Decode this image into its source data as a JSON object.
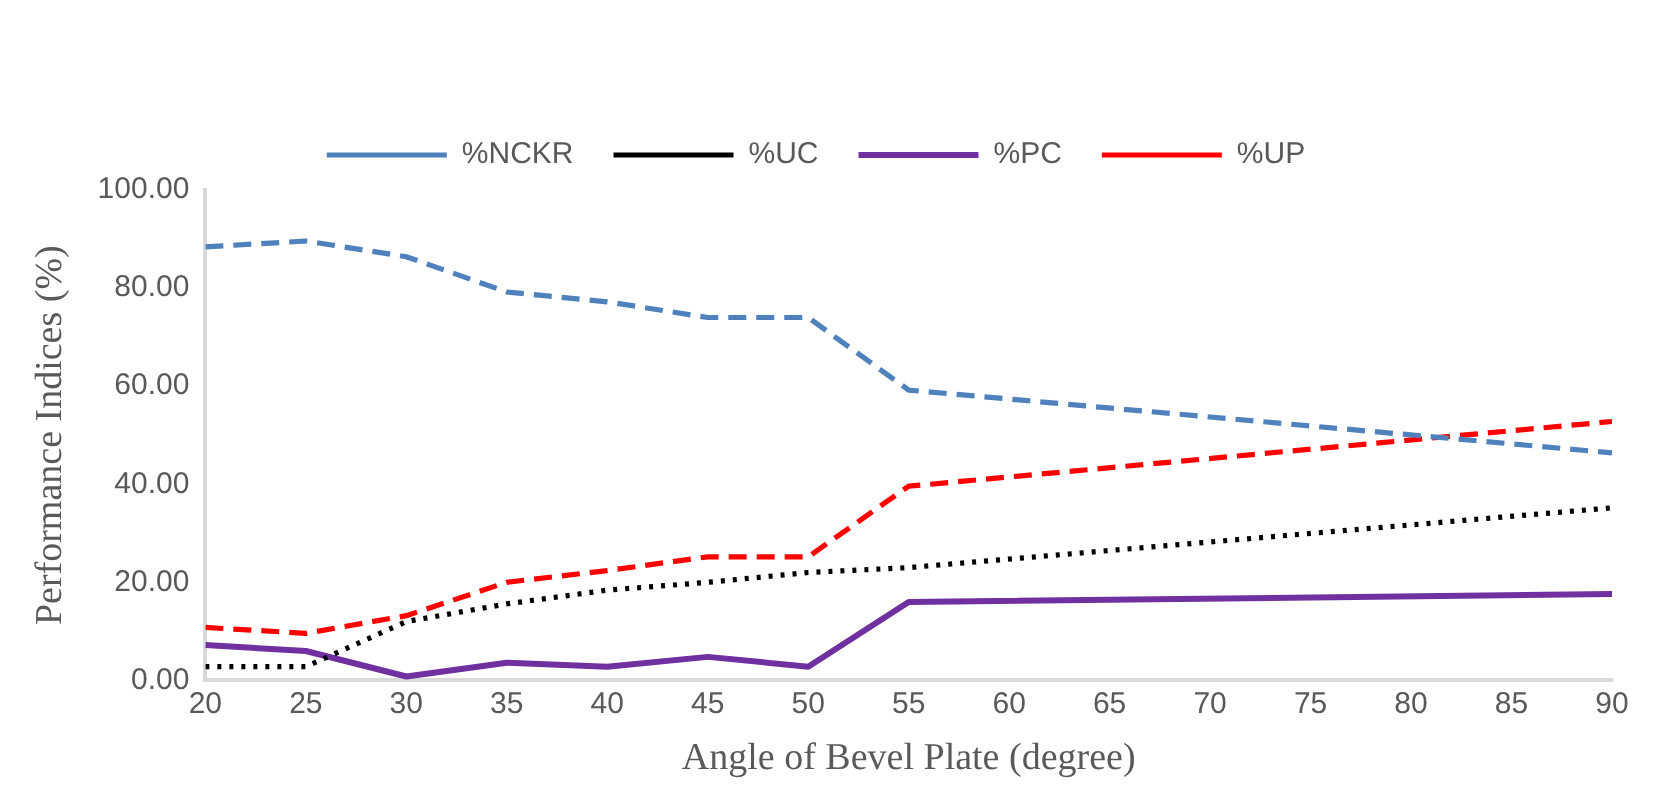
{
  "chart_data": {
    "type": "line",
    "xlabel": "Angle of Bevel Plate (degree)",
    "ylabel": "Performance Indices (%)",
    "xlim": [
      20,
      90
    ],
    "xticks": [
      20,
      25,
      30,
      35,
      40,
      45,
      50,
      55,
      60,
      65,
      70,
      75,
      80,
      85,
      90
    ],
    "ylim": [
      0,
      100
    ],
    "yticks": [
      {
        "value": 0,
        "label": "0.00"
      },
      {
        "value": 20,
        "label": "20.00"
      },
      {
        "value": 40,
        "label": "40.00"
      },
      {
        "value": 60,
        "label": "60.00"
      },
      {
        "value": 80,
        "label": "80.00"
      },
      {
        "value": 100,
        "label": "100.00"
      }
    ],
    "grid": false,
    "legend": "top",
    "marker": "none",
    "series": [
      {
        "name": "%NCKR",
        "color": "#4f81bd",
        "line_style": "dashed",
        "x": [
          20,
          25,
          30,
          35,
          40,
          45,
          50,
          55,
          90
        ],
        "values": [
          88.4,
          89.6,
          86.4,
          79.2,
          77.2,
          74,
          74,
          59.2,
          46.4
        ]
      },
      {
        "name": "%UC",
        "color": "#000000",
        "line_style": "dotted",
        "x": [
          20,
          25,
          30,
          35,
          40,
          45,
          50,
          55,
          90
        ],
        "values": [
          2.8,
          2.8,
          12,
          15.6,
          18.4,
          20,
          22,
          23,
          35.2
        ]
      },
      {
        "name": "%PC",
        "color": "#7030a0",
        "line_style": "solid",
        "x": [
          20,
          25,
          30,
          35,
          40,
          45,
          50,
          55,
          90
        ],
        "values": [
          7.2,
          6,
          0.8,
          3.6,
          2.8,
          4.8,
          2.8,
          16,
          17.6
        ]
      },
      {
        "name": "%UP",
        "color": "#ff0000",
        "line_style": "dashed",
        "x": [
          20,
          25,
          30,
          35,
          40,
          45,
          50,
          55,
          90
        ],
        "values": [
          10.8,
          9.6,
          13.2,
          20,
          22.4,
          25.2,
          25.2,
          39.6,
          52.8
        ]
      }
    ]
  }
}
